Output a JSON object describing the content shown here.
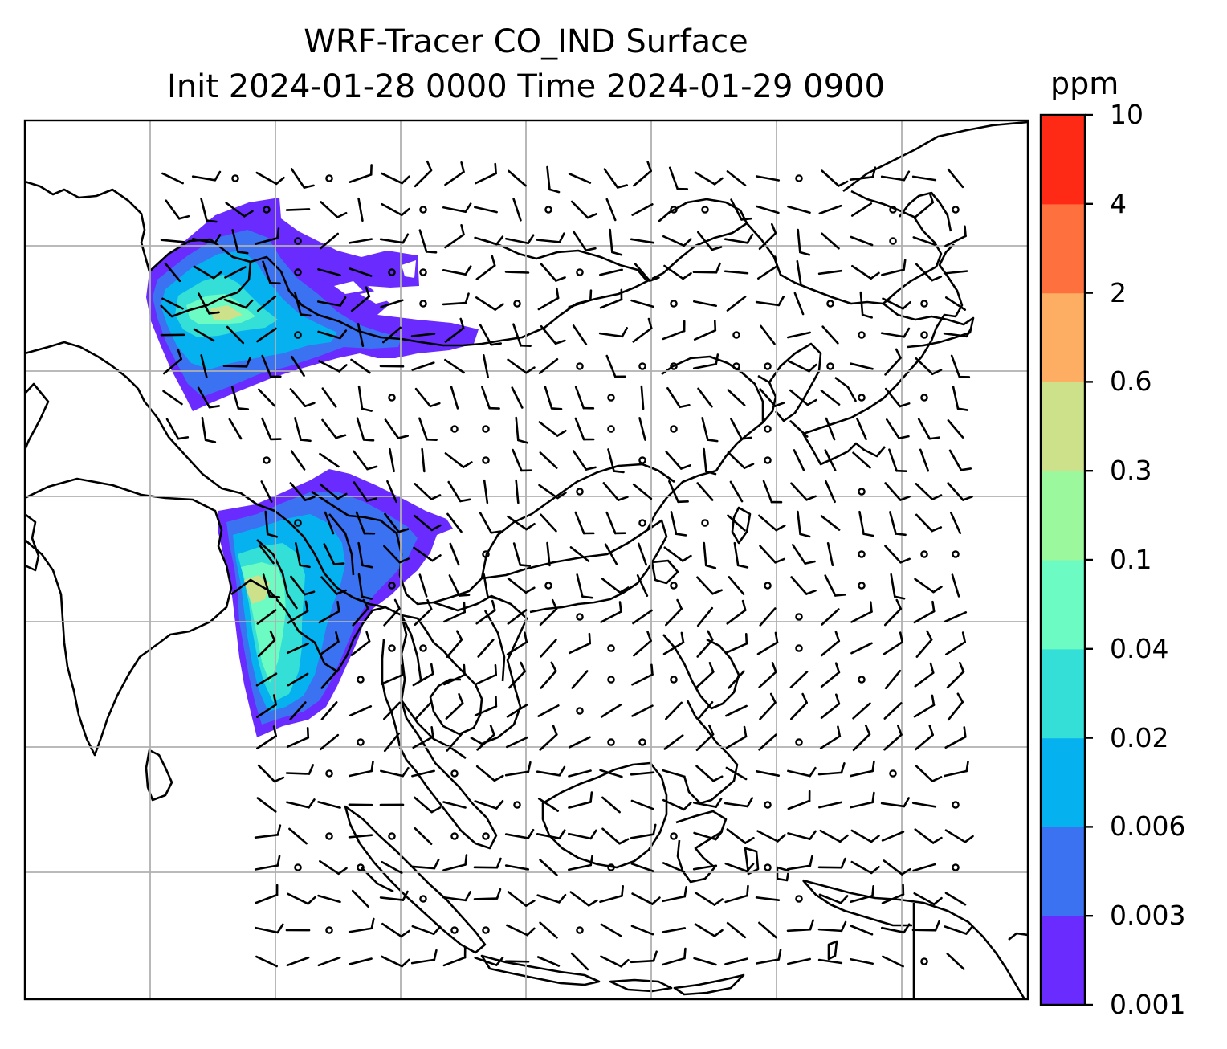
{
  "title": {
    "line1": "WRF-Tracer CO_IND Surface",
    "line2": "Init 2024-01-28 0000 Time 2024-01-29 0900"
  },
  "colorbar": {
    "unit": "ppm",
    "levels": [
      "0.001",
      "0.003",
      "0.006",
      "0.02",
      "0.04",
      "0.1",
      "0.3",
      "0.6",
      "2",
      "4",
      "10"
    ],
    "colors": [
      "#6a2bff",
      "#3a72f2",
      "#05b2ef",
      "#33dfd6",
      "#6cfbc2",
      "#9cf89c",
      "#cde08a",
      "#fdae62",
      "#ff703f",
      "#ff2a16"
    ]
  },
  "map": {
    "grid": true,
    "features": [
      "coastlines",
      "country-borders",
      "wind-barbs",
      "tracer-plume-north",
      "tracer-plume-south"
    ],
    "palette": {
      "grid": "#b0b0b0",
      "coast": "#000000",
      "plume_outer": "#6a2bff",
      "plume_mid": "#3a72f2",
      "plume_inner": "#05b2ef",
      "plume_core": "#6cfbc2",
      "plume_peak": "#cde08a"
    }
  }
}
